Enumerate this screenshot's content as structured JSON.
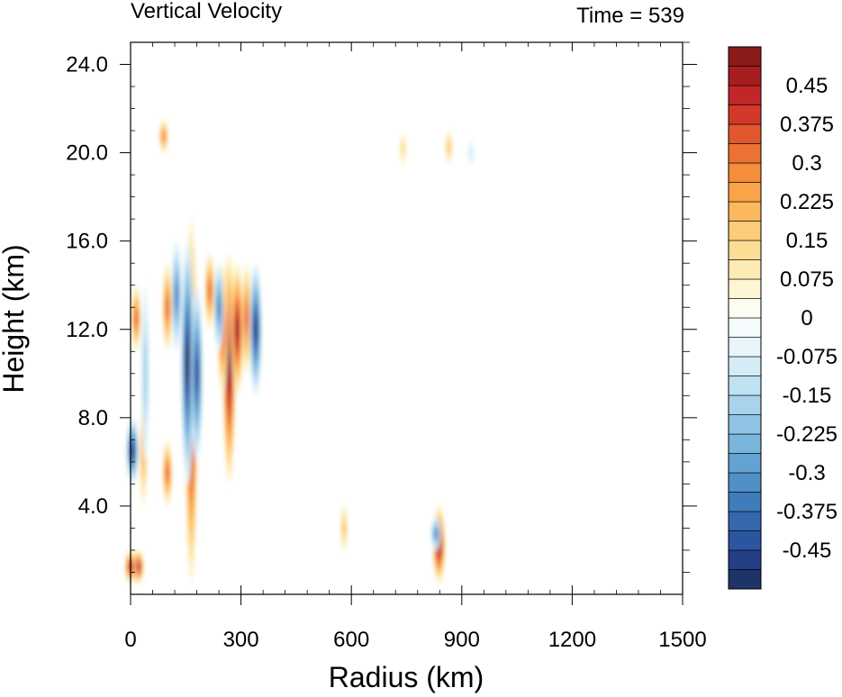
{
  "chart_data": {
    "type": "heatmap",
    "title_left": "Vertical Velocity",
    "title_right": "Time = 539",
    "xlabel": "Radius (km)",
    "ylabel": "Height (km)",
    "xlim": [
      0,
      1500
    ],
    "ylim": [
      0,
      25
    ],
    "x_ticks": [
      0,
      300,
      600,
      900,
      1200,
      1500
    ],
    "x_tick_labels": [
      "0",
      "300",
      "600",
      "900",
      "1200",
      "1500"
    ],
    "y_ticks": [
      4,
      8,
      12,
      16,
      20,
      24
    ],
    "y_tick_labels": [
      "4.0",
      "8.0",
      "12.0",
      "16.0",
      "20.0",
      "24.0"
    ],
    "colorbar": {
      "range": [
        -0.525,
        0.525
      ],
      "interval": 0.0375,
      "labels": [
        "0.45",
        "0.375",
        "0.3",
        "0.225",
        "0.15",
        "0.075",
        "0",
        "-0.075",
        "-0.15",
        "-0.225",
        "-0.3",
        "-0.375",
        "-0.45"
      ],
      "label_values": [
        0.45,
        0.375,
        0.3,
        0.225,
        0.15,
        0.075,
        0,
        -0.075,
        -0.15,
        -0.225,
        -0.3,
        -0.375,
        -0.45
      ],
      "colors": [
        "#1e3466",
        "#233f86",
        "#2b55a0",
        "#3567ad",
        "#3f7cba",
        "#4f8fc5",
        "#63a2d1",
        "#7ab5dc",
        "#91c4e4",
        "#a9d3ec",
        "#bfe1f2",
        "#d4ecf6",
        "#e8f5fa",
        "#f5fafc",
        "#fdfcf2",
        "#fdf5d4",
        "#fdebb5",
        "#fddd96",
        "#fdcc78",
        "#fcb85c",
        "#faa347",
        "#f58d3c",
        "#ec7234",
        "#e1572e",
        "#d3392b",
        "#c32628",
        "#a81d20",
        "#8b1a1a"
      ]
    },
    "features": [
      {
        "r": 165,
        "z0": 0.5,
        "z1": 17,
        "w": 0.5
      },
      {
        "r": 155,
        "z0": 5,
        "z1": 16,
        "w": -0.5
      },
      {
        "r": 180,
        "z0": 6,
        "z1": 14,
        "w": -0.4
      },
      {
        "r": 268,
        "z0": 5,
        "z1": 15.5,
        "w": 0.5
      },
      {
        "r": 250,
        "z0": 9,
        "z1": 15,
        "w": 0.35
      },
      {
        "r": 290,
        "z0": 9,
        "z1": 15,
        "w": 0.45
      },
      {
        "r": 315,
        "z0": 10,
        "z1": 15,
        "w": 0.3
      },
      {
        "r": 340,
        "z0": 9,
        "z1": 15,
        "w": -0.45
      },
      {
        "r": 215,
        "z0": 12,
        "z1": 15.5,
        "w": 0.3
      },
      {
        "r": 240,
        "z0": 11,
        "z1": 15,
        "w": -0.3
      },
      {
        "r": 125,
        "z0": 11,
        "z1": 16,
        "w": -0.3
      },
      {
        "r": 100,
        "z0": 11,
        "z1": 15,
        "w": 0.3
      },
      {
        "r": 15,
        "z0": 11,
        "z1": 14,
        "w": 0.3
      },
      {
        "r": 5,
        "z0": 5,
        "z1": 8,
        "w": -0.45
      },
      {
        "r": 35,
        "z0": 4,
        "z1": 9,
        "w": 0.2
      },
      {
        "r": 100,
        "z0": 4,
        "z1": 7,
        "w": 0.3
      },
      {
        "r": 90,
        "z0": 20,
        "z1": 21.5,
        "w": 0.25
      },
      {
        "r": 40,
        "z0": 6,
        "z1": 14,
        "w": -0.15
      },
      {
        "r": 838,
        "z0": 0.5,
        "z1": 4,
        "w": 0.5
      },
      {
        "r": 830,
        "z0": 2,
        "z1": 3.5,
        "w": -0.3
      },
      {
        "r": 865,
        "z0": 19.5,
        "z1": 21,
        "w": 0.15
      },
      {
        "r": 925,
        "z0": 19.5,
        "z1": 20.5,
        "w": -0.08
      },
      {
        "r": 740,
        "z0": 19.5,
        "z1": 20.8,
        "w": 0.12
      },
      {
        "r": 580,
        "z0": 2,
        "z1": 4,
        "w": 0.15
      },
      {
        "r": 20,
        "z0": 0.5,
        "z1": 2,
        "w": 0.45
      },
      {
        "r": 0,
        "z0": 0.5,
        "z1": 2,
        "w": 0.4
      }
    ]
  }
}
